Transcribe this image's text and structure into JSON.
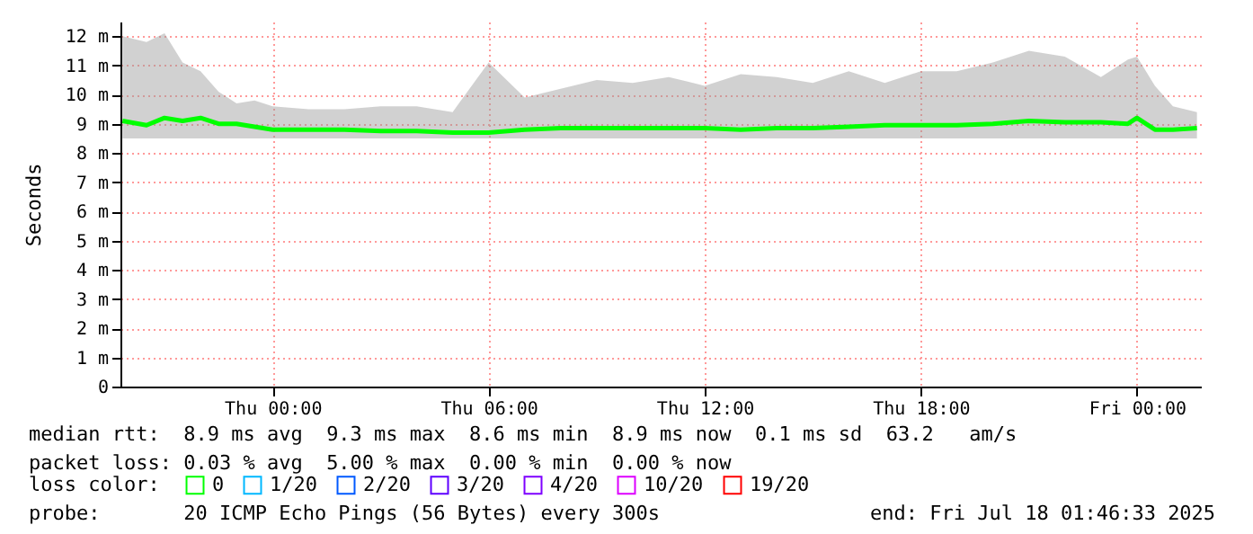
{
  "chart_data": {
    "type": "line",
    "ylabel": "Seconds",
    "x": [
      "2025-07-16T19:50",
      "2025-07-16T20:30",
      "2025-07-16T21:00",
      "2025-07-16T21:30",
      "2025-07-16T22:00",
      "2025-07-16T22:30",
      "2025-07-16T23:00",
      "2025-07-16T23:30",
      "2025-07-17T00:00",
      "2025-07-17T01:00",
      "2025-07-17T02:00",
      "2025-07-17T03:00",
      "2025-07-17T04:00",
      "2025-07-17T05:00",
      "2025-07-17T06:00",
      "2025-07-17T07:00",
      "2025-07-17T08:00",
      "2025-07-17T09:00",
      "2025-07-17T10:00",
      "2025-07-17T11:00",
      "2025-07-17T12:00",
      "2025-07-17T13:00",
      "2025-07-17T14:00",
      "2025-07-17T15:00",
      "2025-07-17T16:00",
      "2025-07-17T17:00",
      "2025-07-17T18:00",
      "2025-07-17T19:00",
      "2025-07-17T20:00",
      "2025-07-17T21:00",
      "2025-07-17T22:00",
      "2025-07-17T23:00",
      "2025-07-17T23:45",
      "2025-07-18T00:00",
      "2025-07-18T00:30",
      "2025-07-18T01:00",
      "2025-07-18T01:40"
    ],
    "series": [
      {
        "name": "0",
        "color": "#00ff00",
        "values": [
          9.1,
          8.95,
          9.2,
          9.1,
          9.2,
          9.0,
          9.0,
          8.9,
          8.8,
          8.8,
          8.8,
          8.75,
          8.75,
          8.7,
          8.7,
          8.8,
          8.85,
          8.85,
          8.85,
          8.85,
          8.85,
          8.8,
          8.85,
          8.85,
          8.9,
          8.95,
          8.95,
          8.95,
          9.0,
          9.1,
          9.05,
          9.05,
          9.0,
          9.2,
          8.8,
          8.8,
          8.85
        ],
        "lower": [
          8.5,
          8.5,
          8.5,
          8.5,
          8.5,
          8.5,
          8.5,
          8.5,
          8.5,
          8.5,
          8.5,
          8.5,
          8.5,
          8.5,
          8.5,
          8.5,
          8.5,
          8.5,
          8.5,
          8.5,
          8.5,
          8.5,
          8.5,
          8.5,
          8.5,
          8.5,
          8.5,
          8.5,
          8.5,
          8.5,
          8.5,
          8.5,
          8.5,
          8.5,
          8.5,
          8.5,
          8.5
        ],
        "upper": [
          12.0,
          11.8,
          12.1,
          11.1,
          10.8,
          10.1,
          9.7,
          9.8,
          9.6,
          9.5,
          9.5,
          9.6,
          9.6,
          9.4,
          11.1,
          9.9,
          10.2,
          10.5,
          10.4,
          10.6,
          10.3,
          10.7,
          10.6,
          10.4,
          10.8,
          10.4,
          10.8,
          10.8,
          11.1,
          11.5,
          11.3,
          10.6,
          11.2,
          11.3,
          10.3,
          9.6,
          9.4
        ]
      },
      {
        "name": "1/20",
        "color": "#00b8ff",
        "values": [
          null,
          null,
          null,
          null,
          null,
          null,
          null,
          null,
          null,
          null,
          null,
          null,
          null,
          null,
          null,
          null,
          null,
          null,
          null,
          null,
          null,
          null,
          null,
          null,
          null,
          null,
          null,
          null,
          null,
          null,
          null,
          null,
          null,
          null,
          null,
          null,
          null
        ]
      },
      {
        "name": "2/20",
        "color": "#0059ff",
        "values": [
          null,
          null,
          null,
          null,
          null,
          null,
          null,
          null,
          null,
          null,
          null,
          null,
          null,
          null,
          null,
          null,
          null,
          null,
          null,
          null,
          null,
          null,
          null,
          null,
          null,
          null,
          null,
          null,
          null,
          null,
          null,
          null,
          null,
          null,
          null,
          null,
          null
        ]
      },
      {
        "name": "3/20",
        "color": "#5e00ff",
        "values": [
          null,
          null,
          null,
          null,
          null,
          null,
          null,
          null,
          null,
          null,
          null,
          null,
          null,
          null,
          null,
          null,
          null,
          null,
          null,
          null,
          null,
          null,
          null,
          null,
          null,
          null,
          null,
          null,
          null,
          null,
          null,
          null,
          null,
          null,
          null,
          null,
          null
        ]
      },
      {
        "name": "4/20",
        "color": "#7e00ff",
        "values": [
          null,
          null,
          null,
          null,
          null,
          null,
          null,
          null,
          null,
          null,
          null,
          null,
          null,
          null,
          null,
          null,
          null,
          null,
          null,
          null,
          null,
          null,
          null,
          null,
          null,
          null,
          null,
          null,
          null,
          null,
          null,
          null,
          null,
          null,
          null,
          null,
          null
        ]
      },
      {
        "name": "10/20",
        "color": "#dd00ff",
        "values": [
          null,
          null,
          null,
          null,
          null,
          null,
          null,
          null,
          null,
          null,
          null,
          null,
          null,
          null,
          null,
          null,
          null,
          null,
          null,
          null,
          null,
          null,
          null,
          null,
          null,
          null,
          null,
          null,
          null,
          null,
          null,
          null,
          null,
          null,
          null,
          null,
          null
        ]
      },
      {
        "name": "19/20",
        "color": "#ff0000",
        "values": [
          null,
          null,
          null,
          null,
          null,
          null,
          null,
          null,
          null,
          null,
          null,
          null,
          null,
          null,
          null,
          null,
          null,
          null,
          null,
          null,
          null,
          null,
          null,
          null,
          null,
          null,
          null,
          null,
          null,
          null,
          null,
          null,
          null,
          null,
          null,
          null,
          null
        ]
      }
    ],
    "legend_title": "loss color:",
    "legend": "bottom",
    "xlim": [
      "2025-07-16T19:46:33",
      "2025-07-18T01:46:33"
    ],
    "xticks": [
      {
        "value": "2025-07-17T00:00",
        "label": "Thu 00:00"
      },
      {
        "value": "2025-07-17T06:00",
        "label": "Thu 06:00"
      },
      {
        "value": "2025-07-17T12:00",
        "label": "Thu 12:00"
      },
      {
        "value": "2025-07-17T18:00",
        "label": "Thu 18:00"
      },
      {
        "value": "2025-07-18T00:00",
        "label": "Fri 00:00"
      }
    ],
    "ylim": [
      0,
      12.5
    ],
    "yticks": [
      0,
      {
        "value": 1,
        "label": "1 m"
      },
      {
        "value": 2,
        "label": "2 m"
      },
      {
        "value": 3,
        "label": "3 m"
      },
      {
        "value": 4,
        "label": "4 m"
      },
      {
        "value": 5,
        "label": "5 m"
      },
      {
        "value": 6,
        "label": "6 m"
      },
      {
        "value": 7,
        "label": "7 m"
      },
      {
        "value": 8,
        "label": "8 m"
      },
      {
        "value": 9,
        "label": "9 m"
      },
      {
        "value": 10,
        "label": "10 m"
      },
      {
        "value": 11,
        "label": "11 m"
      },
      {
        "value": 12,
        "label": "12 m"
      }
    ],
    "grid": true,
    "line_style": "solid",
    "annotations": [
      "median rtt:  8.9 ms avg  9.3 ms max  8.6 ms min  8.9 ms now  0.1 ms sd  63.2   am/s",
      "packet loss: 0.03 % avg  5.00 % max  0.00 % min  0.00 % now",
      "probe:       20 ICMP Echo Pings (56 Bytes) every 300s",
      "end: Fri Jul 18 01:46:33 2025"
    ]
  }
}
